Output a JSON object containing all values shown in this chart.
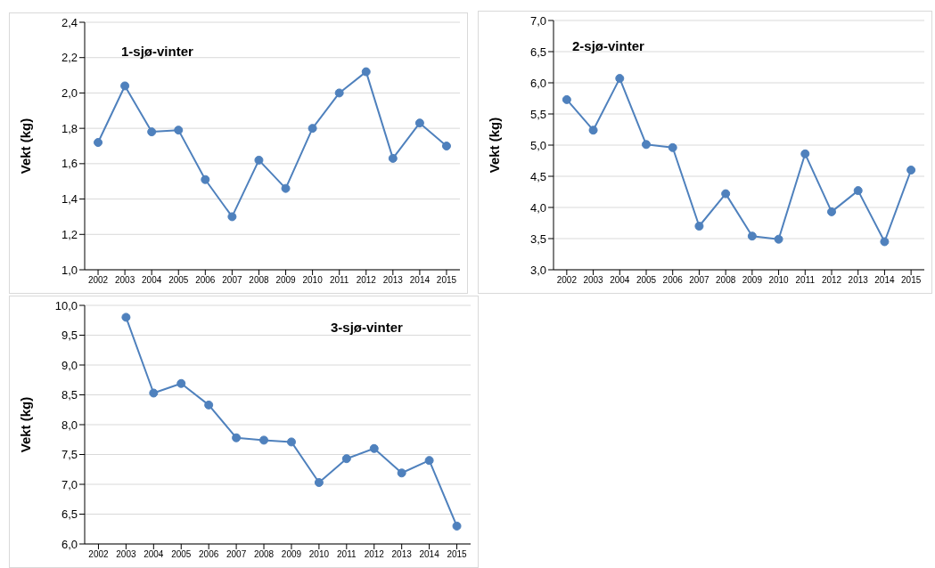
{
  "chart_data": [
    {
      "type": "line",
      "title": "1-sjø-vinter",
      "ylabel": "Vekt (kg)",
      "categories": [
        "2002",
        "2003",
        "2004",
        "2005",
        "2006",
        "2007",
        "2008",
        "2009",
        "2010",
        "2011",
        "2012",
        "2013",
        "2014",
        "2015"
      ],
      "series": [
        {
          "color": "#4f81bd",
          "values": [
            1.72,
            2.04,
            1.78,
            1.79,
            1.51,
            1.3,
            1.62,
            1.46,
            1.8,
            2.0,
            2.12,
            1.63,
            1.83,
            1.7
          ]
        }
      ],
      "ylim": [
        1.0,
        2.4
      ],
      "yticks": [
        {
          "value": 1.0,
          "label": "1,0"
        },
        {
          "value": 1.2,
          "label": "1,2"
        },
        {
          "value": 1.4,
          "label": "1,4"
        },
        {
          "value": 1.6,
          "label": "1,6"
        },
        {
          "value": 1.8,
          "label": "1,8"
        },
        {
          "value": 2.0,
          "label": "2,0"
        },
        {
          "value": 2.2,
          "label": "2,2"
        },
        {
          "value": 2.4,
          "label": "2,4"
        }
      ],
      "grid": "y",
      "marker": "circle"
    },
    {
      "type": "line",
      "title": "2-sjø-vinter",
      "ylabel": "Vekt (kg)",
      "categories": [
        "2002",
        "2003",
        "2004",
        "2005",
        "2006",
        "2007",
        "2008",
        "2009",
        "2010",
        "2011",
        "2012",
        "2013",
        "2014",
        "2015"
      ],
      "series": [
        {
          "color": "#4f81bd",
          "values": [
            5.73,
            5.24,
            6.07,
            5.01,
            4.96,
            3.7,
            4.22,
            3.54,
            3.49,
            4.86,
            3.93,
            4.27,
            3.45,
            4.6
          ]
        }
      ],
      "ylim": [
        3.0,
        7.0
      ],
      "yticks": [
        {
          "value": 3.0,
          "label": "3,0"
        },
        {
          "value": 3.5,
          "label": "3,5"
        },
        {
          "value": 4.0,
          "label": "4,0"
        },
        {
          "value": 4.5,
          "label": "4,5"
        },
        {
          "value": 5.0,
          "label": "5,0"
        },
        {
          "value": 5.5,
          "label": "5,5"
        },
        {
          "value": 6.0,
          "label": "6,0"
        },
        {
          "value": 6.5,
          "label": "6,5"
        },
        {
          "value": 7.0,
          "label": "7,0"
        }
      ],
      "grid": "y",
      "marker": "circle"
    },
    {
      "type": "line",
      "title": "3-sjø-vinter",
      "ylabel": "Vekt (kg)",
      "categories": [
        "2002",
        "2003",
        "2004",
        "2005",
        "2006",
        "2007",
        "2008",
        "2009",
        "2010",
        "2011",
        "2012",
        "2013",
        "2014",
        "2015"
      ],
      "series": [
        {
          "color": "#4f81bd",
          "values": [
            null,
            9.8,
            8.53,
            8.69,
            8.33,
            7.78,
            7.74,
            7.71,
            7.03,
            7.43,
            7.6,
            7.19,
            7.4,
            6.3
          ]
        }
      ],
      "ylim": [
        6.0,
        10.0
      ],
      "yticks": [
        {
          "value": 6.0,
          "label": "6,0"
        },
        {
          "value": 6.5,
          "label": "6,5"
        },
        {
          "value": 7.0,
          "label": "7,0"
        },
        {
          "value": 7.5,
          "label": "7,5"
        },
        {
          "value": 8.0,
          "label": "8,0"
        },
        {
          "value": 8.5,
          "label": "8,5"
        },
        {
          "value": 9.0,
          "label": "9,0"
        },
        {
          "value": 9.5,
          "label": "9,5"
        },
        {
          "value": 10.0,
          "label": "10,0"
        }
      ],
      "grid": "y",
      "marker": "circle"
    }
  ]
}
